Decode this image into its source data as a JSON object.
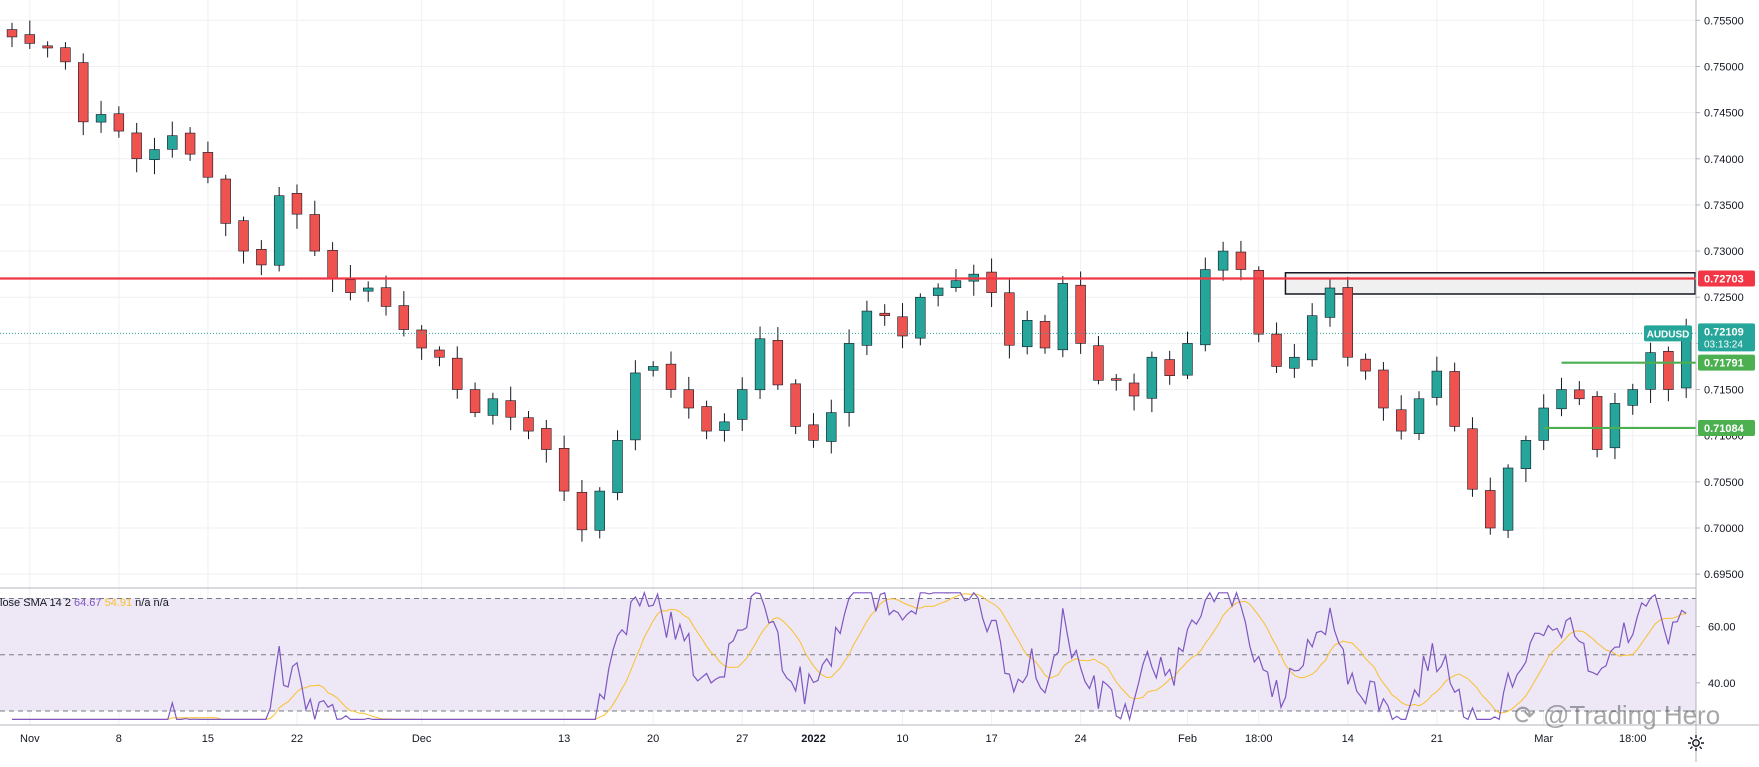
{
  "chart_data": {
    "type": "candlestick",
    "symbol": "AUDUSD",
    "price_axis": {
      "ticks": [
        "0.75500",
        "0.75000",
        "0.74500",
        "0.74000",
        "0.73500",
        "0.73000",
        "0.72500",
        "0.72000",
        "0.71500",
        "0.71000",
        "0.70500",
        "0.70000",
        "0.69500"
      ],
      "range": [
        0.6935,
        0.7572
      ]
    },
    "time_axis": {
      "ticks": [
        {
          "label": "Nov",
          "bold": false,
          "bar": 1
        },
        {
          "label": "8",
          "bold": false,
          "bar": 6
        },
        {
          "label": "15",
          "bold": false,
          "bar": 11
        },
        {
          "label": "22",
          "bold": false,
          "bar": 16
        },
        {
          "label": "Dec",
          "bold": false,
          "bar": 23
        },
        {
          "label": "13",
          "bold": false,
          "bar": 31
        },
        {
          "label": "20",
          "bold": false,
          "bar": 36
        },
        {
          "label": "27",
          "bold": false,
          "bar": 41
        },
        {
          "label": "2022",
          "bold": true,
          "bar": 45
        },
        {
          "label": "10",
          "bold": false,
          "bar": 50
        },
        {
          "label": "17",
          "bold": false,
          "bar": 55
        },
        {
          "label": "24",
          "bold": false,
          "bar": 60
        },
        {
          "label": "Feb",
          "bold": false,
          "bar": 66
        },
        {
          "label": "18:00",
          "bold": false,
          "bar": 70
        },
        {
          "label": "14",
          "bold": false,
          "bar": 75
        },
        {
          "label": "21",
          "bold": false,
          "bar": 80
        },
        {
          "label": "Mar",
          "bold": false,
          "bar": 86
        },
        {
          "label": "18:00",
          "bold": false,
          "bar": 91
        }
      ],
      "bars_total": 95
    },
    "closes": [
      0.7532,
      0.7525,
      0.752,
      0.7505,
      0.744,
      0.7448,
      0.743,
      0.74,
      0.741,
      0.7425,
      0.7405,
      0.738,
      0.733,
      0.73,
      0.7285,
      0.736,
      0.734,
      0.73,
      0.727,
      0.7255,
      0.726,
      0.724,
      0.7215,
      0.7195,
      0.7185,
      0.715,
      0.7125,
      0.714,
      0.712,
      0.7105,
      0.7085,
      0.704,
      0.6998,
      0.704,
      0.7095,
      0.7168,
      0.7175,
      0.715,
      0.713,
      0.7105,
      0.7115,
      0.715,
      0.7205,
      0.7155,
      0.711,
      0.7095,
      0.7125,
      0.72,
      0.7235,
      0.723,
      0.7208,
      0.725,
      0.726,
      0.7268,
      0.7275,
      0.7255,
      0.7198,
      0.7225,
      0.7195,
      0.7265,
      0.72,
      0.716,
      0.716,
      0.7143,
      0.7185,
      0.7165,
      0.72,
      0.728,
      0.73,
      0.728,
      0.721,
      0.7175,
      0.7185,
      0.723,
      0.726,
      0.7185,
      0.717,
      0.713,
      0.7105,
      0.714,
      0.717,
      0.711,
      0.7042,
      0.7,
      0.7065,
      0.7095,
      0.713,
      0.715,
      0.714,
      0.7085,
      0.7135,
      0.715,
      0.719,
      0.715,
      0.7211
    ],
    "current_price": {
      "label": "0.72109",
      "countdown": "03:13:24",
      "symbol_tag": "AUDUSD",
      "color": "#26a69a"
    },
    "levels": [
      {
        "price": 0.72703,
        "label": "0.72703",
        "color": "#f23645",
        "start_bar": 0
      },
      {
        "price": 0.71791,
        "label": "0.71791",
        "color": "#4caf50",
        "start_bar": 87
      },
      {
        "price": 0.71084,
        "label": "0.71084",
        "color": "#4caf50",
        "start_bar": 86
      }
    ],
    "zone": {
      "price_top": 0.72765,
      "price_bottom": 0.72535,
      "start_bar": 71.5,
      "end_bar": 94.5
    },
    "colors": {
      "up": "#26a69a",
      "down": "#ef5350",
      "wick": "#131722"
    },
    "rsi": {
      "legend": {
        "name": "lose SMA 14 2",
        "rsi_value": "64.67",
        "sma_value": "54.91",
        "na1": "n/a",
        "na2": "n/a"
      },
      "axis_ticks": [
        "60.00",
        "40.00"
      ],
      "upper_band": 70,
      "lower_band": 30,
      "mid_band": 50,
      "range": [
        25,
        73
      ],
      "rsi_color": "#7e57c2",
      "sma_color": "#fbc02d",
      "band_fill": "#ede7f6"
    }
  },
  "watermark": "@Trading Hero",
  "settings_icon": "gear-icon"
}
